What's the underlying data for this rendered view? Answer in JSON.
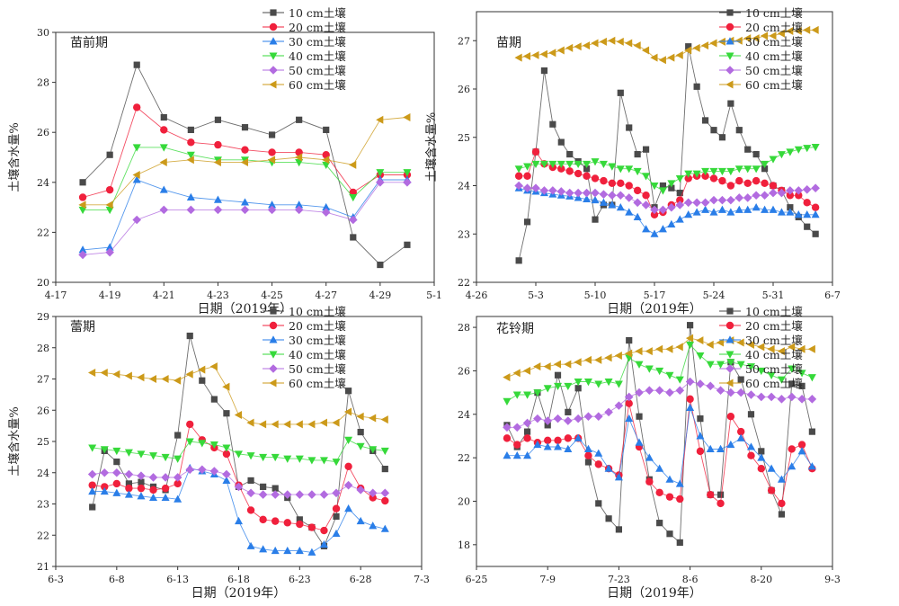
{
  "legend_labels": [
    "10 cm土壤",
    "20 cm土壤",
    "30 cm土壤",
    "40 cm土壤",
    "50 cm土壤",
    "60 cm土壤"
  ],
  "series_styles": [
    {
      "color": "#4a4a4a",
      "marker": "square"
    },
    {
      "color": "#f0203c",
      "marker": "circle"
    },
    {
      "color": "#2a7ee8",
      "marker": "triangle-up"
    },
    {
      "color": "#36d93a",
      "marker": "triangle-down"
    },
    {
      "color": "#b26be0",
      "marker": "diamond"
    },
    {
      "color": "#cc9a1a",
      "marker": "triangle-left"
    }
  ],
  "chart_data": [
    {
      "type": "line",
      "title": "苗前期",
      "xlabel": "日期（2019年）",
      "ylabel": "土壤含水量%",
      "xlim": [
        0,
        14
      ],
      "ylim": [
        20,
        30
      ],
      "xticks": [
        0,
        2,
        4,
        6,
        8,
        10,
        12,
        14
      ],
      "xtick_labels": [
        "4-17",
        "4-19",
        "4-21",
        "4-23",
        "4-25",
        "4-27",
        "4-29",
        "5-1"
      ],
      "yticks": [
        20,
        22,
        24,
        26,
        28,
        30
      ],
      "legend_position": "top-right",
      "x": [
        1,
        2,
        3,
        4,
        5,
        6,
        7,
        8,
        9,
        10,
        11,
        12,
        13
      ],
      "series": [
        {
          "name": "10 cm土壤",
          "values": [
            24.0,
            25.1,
            28.7,
            26.6,
            26.1,
            26.5,
            26.2,
            25.9,
            26.5,
            26.1,
            21.8,
            20.7,
            21.5
          ]
        },
        {
          "name": "20 cm土壤",
          "values": [
            23.4,
            23.7,
            27.0,
            26.1,
            25.6,
            25.5,
            25.3,
            25.2,
            25.2,
            25.1,
            23.6,
            24.3,
            24.3
          ]
        },
        {
          "name": "30 cm土壤",
          "values": [
            21.3,
            21.4,
            24.1,
            23.7,
            23.4,
            23.3,
            23.2,
            23.1,
            23.1,
            23.0,
            22.6,
            24.1,
            24.1
          ]
        },
        {
          "name": "40 cm土壤",
          "values": [
            22.9,
            22.9,
            25.4,
            25.4,
            25.1,
            24.9,
            24.9,
            24.8,
            24.8,
            24.7,
            23.4,
            24.4,
            24.4
          ]
        },
        {
          "name": "50 cm土壤",
          "values": [
            21.1,
            21.2,
            22.5,
            22.9,
            22.9,
            22.9,
            22.9,
            22.9,
            22.9,
            22.8,
            22.5,
            24.0,
            24.0
          ]
        },
        {
          "name": "60 cm土壤",
          "values": [
            23.1,
            23.1,
            24.3,
            24.8,
            24.9,
            24.8,
            24.8,
            24.9,
            25.0,
            24.9,
            24.7,
            26.5,
            26.6
          ]
        }
      ]
    },
    {
      "type": "line",
      "title": "苗期",
      "xlabel": "日期（2019年）",
      "ylabel": "土壤含水量%",
      "xlim": [
        0,
        42
      ],
      "ylim": [
        22,
        27.6
      ],
      "xticks": [
        0,
        7,
        14,
        21,
        28,
        35,
        42
      ],
      "xtick_labels": [
        "4-26",
        "5-3",
        "5-10",
        "5-17",
        "5-24",
        "5-31",
        "6-7"
      ],
      "yticks": [
        22,
        23,
        24,
        25,
        26,
        27
      ],
      "legend_position": "top-right",
      "x": [
        5,
        6,
        7,
        8,
        9,
        10,
        11,
        12,
        13,
        14,
        15,
        16,
        17,
        18,
        19,
        20,
        21,
        22,
        23,
        24,
        25,
        26,
        27,
        28,
        29,
        30,
        31,
        32,
        33,
        34,
        35,
        36,
        37,
        38,
        39,
        40
      ],
      "series": [
        {
          "name": "10 cm土壤",
          "values": [
            22.45,
            23.25,
            24.7,
            26.38,
            25.27,
            24.9,
            24.65,
            24.5,
            24.35,
            23.3,
            23.6,
            23.6,
            25.92,
            25.2,
            24.65,
            24.75,
            23.55,
            24.0,
            23.95,
            23.85,
            26.88,
            26.05,
            25.35,
            25.15,
            25.0,
            25.7,
            25.15,
            24.75,
            24.65,
            24.35,
            24.0,
            23.9,
            23.55,
            23.35,
            23.15,
            23.0
          ]
        },
        {
          "name": "20 cm土壤",
          "values": [
            24.2,
            24.2,
            24.7,
            24.45,
            24.38,
            24.35,
            24.3,
            24.25,
            24.2,
            24.15,
            24.1,
            24.05,
            24.05,
            24.0,
            23.9,
            23.8,
            23.4,
            23.45,
            23.6,
            23.7,
            24.15,
            24.2,
            24.2,
            24.15,
            24.1,
            24.0,
            24.1,
            24.05,
            24.1,
            24.05,
            24.0,
            23.9,
            23.8,
            23.8,
            23.65,
            23.55
          ]
        },
        {
          "name": "30 cm土壤",
          "values": [
            23.95,
            23.9,
            23.88,
            23.85,
            23.82,
            23.8,
            23.78,
            23.75,
            23.72,
            23.7,
            23.65,
            23.6,
            23.55,
            23.45,
            23.35,
            23.1,
            23.0,
            23.1,
            23.2,
            23.3,
            23.4,
            23.45,
            23.5,
            23.45,
            23.5,
            23.45,
            23.5,
            23.5,
            23.55,
            23.5,
            23.5,
            23.45,
            23.45,
            23.4,
            23.4,
            23.4
          ]
        },
        {
          "name": "40 cm土壤",
          "values": [
            24.35,
            24.4,
            24.45,
            24.45,
            24.45,
            24.45,
            24.45,
            24.45,
            24.45,
            24.5,
            24.45,
            24.4,
            24.35,
            24.35,
            24.3,
            24.2,
            24.0,
            23.9,
            24.05,
            24.15,
            24.25,
            24.25,
            24.3,
            24.3,
            24.3,
            24.3,
            24.35,
            24.35,
            24.35,
            24.45,
            24.55,
            24.65,
            24.7,
            24.75,
            24.78,
            24.8
          ]
        },
        {
          "name": "50 cm土壤",
          "values": [
            24.0,
            23.95,
            23.95,
            23.9,
            23.9,
            23.88,
            23.85,
            23.85,
            23.85,
            23.85,
            23.82,
            23.8,
            23.8,
            23.75,
            23.65,
            23.6,
            23.5,
            23.5,
            23.55,
            23.6,
            23.65,
            23.65,
            23.65,
            23.7,
            23.7,
            23.7,
            23.75,
            23.75,
            23.8,
            23.8,
            23.85,
            23.85,
            23.9,
            23.9,
            23.92,
            23.95
          ]
        },
        {
          "name": "60 cm土壤",
          "values": [
            26.65,
            26.68,
            26.7,
            26.72,
            26.75,
            26.8,
            26.85,
            26.88,
            26.9,
            26.95,
            26.98,
            27.0,
            26.98,
            26.95,
            26.9,
            26.8,
            26.65,
            26.6,
            26.65,
            26.7,
            26.8,
            26.85,
            26.9,
            26.95,
            26.98,
            27.0,
            27.0,
            27.05,
            27.05,
            27.1,
            27.1,
            27.15,
            27.2,
            27.2,
            27.22,
            27.22
          ]
        }
      ]
    },
    {
      "type": "line",
      "title": "蕾期",
      "xlabel": "日期（2019年）",
      "ylabel": "土壤含水量%",
      "xlim": [
        0,
        30
      ],
      "ylim": [
        21,
        29
      ],
      "xticks": [
        0,
        5,
        10,
        15,
        20,
        25,
        30
      ],
      "xtick_labels": [
        "6-3",
        "6-8",
        "6-13",
        "6-18",
        "6-23",
        "6-28",
        "7-3"
      ],
      "yticks": [
        21,
        22,
        23,
        24,
        25,
        26,
        27,
        28,
        29
      ],
      "legend_position": "top-right",
      "x": [
        3,
        4,
        5,
        6,
        7,
        8,
        9,
        10,
        11,
        12,
        13,
        14,
        15,
        16,
        17,
        18,
        19,
        20,
        21,
        22,
        23,
        24,
        25,
        26,
        27
      ],
      "series": [
        {
          "name": "10 cm土壤",
          "values": [
            22.9,
            24.7,
            24.35,
            23.65,
            23.7,
            23.55,
            23.45,
            25.2,
            28.38,
            26.95,
            26.35,
            25.9,
            23.55,
            23.75,
            23.55,
            23.5,
            23.2,
            22.5,
            22.25,
            21.65,
            22.6,
            26.62,
            25.3,
            24.7,
            24.12
          ]
        },
        {
          "name": "20 cm土壤",
          "values": [
            23.6,
            23.55,
            23.65,
            23.5,
            23.5,
            23.45,
            23.5,
            23.65,
            25.55,
            25.05,
            24.8,
            24.6,
            23.6,
            22.8,
            22.5,
            22.45,
            22.4,
            22.35,
            22.25,
            22.15,
            22.85,
            24.2,
            23.5,
            23.2,
            23.1
          ]
        },
        {
          "name": "30 cm土壤",
          "values": [
            23.4,
            23.4,
            23.35,
            23.3,
            23.25,
            23.2,
            23.2,
            23.15,
            24.15,
            24.05,
            23.95,
            23.75,
            22.45,
            21.65,
            21.55,
            21.5,
            21.5,
            21.5,
            21.45,
            21.7,
            22.05,
            22.85,
            22.45,
            22.3,
            22.2
          ]
        },
        {
          "name": "40 cm土壤",
          "values": [
            24.8,
            24.75,
            24.7,
            24.65,
            24.6,
            24.55,
            24.5,
            24.45,
            25.0,
            24.95,
            24.9,
            24.8,
            24.6,
            24.55,
            24.5,
            24.5,
            24.45,
            24.45,
            24.4,
            24.4,
            24.35,
            25.05,
            24.85,
            24.75,
            24.7
          ]
        },
        {
          "name": "50 cm土壤",
          "values": [
            23.95,
            24.0,
            24.0,
            23.95,
            23.9,
            23.85,
            23.85,
            23.85,
            24.1,
            24.1,
            24.05,
            23.95,
            23.55,
            23.35,
            23.3,
            23.3,
            23.3,
            23.3,
            23.3,
            23.3,
            23.35,
            23.6,
            23.45,
            23.35,
            23.35
          ]
        },
        {
          "name": "60 cm土壤",
          "values": [
            27.2,
            27.2,
            27.15,
            27.1,
            27.05,
            27.0,
            27.0,
            26.95,
            27.15,
            27.3,
            27.4,
            26.75,
            25.85,
            25.6,
            25.55,
            25.55,
            25.55,
            25.55,
            25.55,
            25.6,
            25.6,
            25.95,
            25.8,
            25.75,
            25.7
          ]
        }
      ]
    },
    {
      "type": "line",
      "title": "花铃期",
      "xlabel": "日期（2019年）",
      "ylabel": "",
      "xlim": [
        0,
        70
      ],
      "ylim": [
        17,
        28.5
      ],
      "xticks": [
        0,
        14,
        28,
        42,
        56,
        70
      ],
      "xtick_labels": [
        "6-25",
        "7-9",
        "7-23",
        "8-6",
        "8-20",
        "9-3"
      ],
      "yticks": [
        18,
        20,
        22,
        24,
        26,
        28
      ],
      "legend_position": "top-right",
      "x": [
        6,
        8,
        10,
        12,
        14,
        16,
        18,
        20,
        22,
        24,
        26,
        28,
        30,
        32,
        34,
        36,
        38,
        40,
        42,
        44,
        46,
        48,
        50,
        52,
        54,
        56,
        58,
        60,
        62,
        64,
        66
      ],
      "series": [
        {
          "name": "10 cm土壤",
          "values": [
            23.5,
            22.5,
            23.2,
            25.0,
            23.5,
            25.8,
            24.1,
            25.2,
            21.8,
            19.9,
            19.2,
            18.7,
            27.4,
            23.9,
            21.0,
            19.0,
            18.5,
            18.1,
            28.1,
            23.8,
            20.3,
            20.3,
            26.4,
            25.6,
            24.0,
            22.3,
            20.5,
            19.4,
            25.4,
            25.3,
            23.2
          ]
        },
        {
          "name": "20 cm土壤",
          "values": [
            22.9,
            22.6,
            22.9,
            22.7,
            22.8,
            22.8,
            22.9,
            22.9,
            22.1,
            21.7,
            21.5,
            21.2,
            24.5,
            22.5,
            20.9,
            20.4,
            20.2,
            20.1,
            24.7,
            22.3,
            20.3,
            19.9,
            23.9,
            23.2,
            22.1,
            21.5,
            20.5,
            19.9,
            22.4,
            22.6,
            21.5
          ]
        },
        {
          "name": "30 cm土壤",
          "values": [
            22.1,
            22.1,
            22.1,
            22.6,
            22.5,
            22.5,
            22.4,
            22.9,
            22.4,
            22.2,
            21.5,
            21.1,
            23.8,
            22.7,
            22.0,
            21.5,
            21.0,
            20.8,
            24.3,
            23.0,
            22.4,
            22.4,
            22.6,
            22.9,
            22.5,
            22.0,
            21.5,
            21.0,
            21.6,
            22.3,
            21.6
          ]
        },
        {
          "name": "40 cm土壤",
          "values": [
            24.6,
            24.9,
            24.9,
            25.0,
            25.2,
            25.3,
            25.3,
            25.5,
            25.5,
            25.4,
            25.5,
            25.4,
            26.6,
            26.3,
            26.1,
            26.0,
            25.8,
            25.6,
            27.2,
            26.7,
            26.3,
            26.3,
            26.4,
            26.3,
            26.2,
            26.0,
            25.8,
            25.6,
            26.1,
            25.9,
            25.7
          ]
        },
        {
          "name": "50 cm土壤",
          "values": [
            23.4,
            23.4,
            23.6,
            23.8,
            23.7,
            23.8,
            23.7,
            23.8,
            23.9,
            23.9,
            24.1,
            24.4,
            24.8,
            25.0,
            25.1,
            25.1,
            25.0,
            25.1,
            25.5,
            25.4,
            25.3,
            25.1,
            25.0,
            25.0,
            24.9,
            24.8,
            24.8,
            24.7,
            24.8,
            24.7,
            24.7
          ]
        },
        {
          "name": "60 cm土壤",
          "values": [
            25.7,
            25.9,
            26.0,
            26.2,
            26.2,
            26.3,
            26.3,
            26.4,
            26.5,
            26.5,
            26.6,
            26.7,
            26.8,
            26.9,
            26.9,
            27.0,
            27.0,
            27.1,
            27.5,
            27.4,
            27.2,
            27.3,
            27.4,
            27.3,
            27.2,
            27.1,
            27.0,
            26.9,
            27.1,
            27.0,
            27.0
          ]
        }
      ]
    }
  ]
}
